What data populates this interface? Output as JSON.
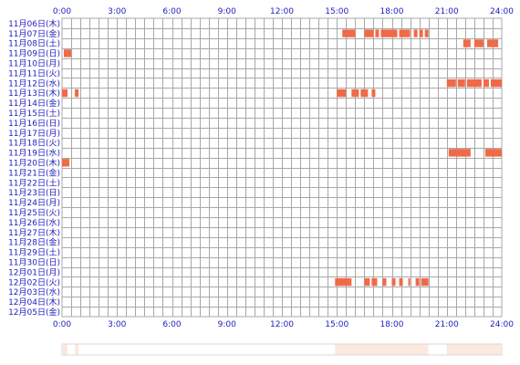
{
  "chart_data": {
    "type": "heatmap",
    "x_axis": {
      "unit": "hour",
      "range": [
        0,
        24
      ],
      "tick_labels": [
        "0:00",
        "3:00",
        "6:00",
        "9:00",
        "12:00",
        "15:00",
        "18:00",
        "21:00",
        "24:00"
      ]
    },
    "grid": true,
    "colors": {
      "active": "#f06a48",
      "grid": "#a8a8a8",
      "label": "#2020c0",
      "summary_light": "#fde8de"
    },
    "rows": [
      {
        "label": "11月06日(木)",
        "intervals": []
      },
      {
        "label": "11月07日(金)",
        "intervals": [
          [
            15.3,
            16.0
          ],
          [
            16.5,
            17.0
          ],
          [
            17.1,
            17.3
          ],
          [
            17.4,
            18.3
          ],
          [
            18.4,
            19.0
          ],
          [
            19.2,
            19.4
          ],
          [
            19.5,
            19.7
          ],
          [
            19.8,
            20.0
          ]
        ]
      },
      {
        "label": "11月08日(土)",
        "intervals": [
          [
            21.9,
            22.3
          ],
          [
            22.5,
            23.0
          ],
          [
            23.2,
            23.8
          ]
        ]
      },
      {
        "label": "11月09日(日)",
        "intervals": [
          [
            0.1,
            0.5
          ]
        ]
      },
      {
        "label": "11月10日(月)",
        "intervals": []
      },
      {
        "label": "11月11日(火)",
        "intervals": []
      },
      {
        "label": "11月12日(水)",
        "intervals": [
          [
            21.0,
            21.5
          ],
          [
            21.6,
            22.0
          ],
          [
            22.1,
            22.9
          ],
          [
            23.0,
            23.3
          ],
          [
            23.4,
            24.0
          ]
        ]
      },
      {
        "label": "11月13日(木)",
        "intervals": [
          [
            0.0,
            0.3
          ],
          [
            0.7,
            0.9
          ],
          [
            15.0,
            15.5
          ],
          [
            15.8,
            16.2
          ],
          [
            16.3,
            16.7
          ],
          [
            16.9,
            17.1
          ]
        ]
      },
      {
        "label": "11月14日(金)",
        "intervals": []
      },
      {
        "label": "11月15日(土)",
        "intervals": []
      },
      {
        "label": "11月16日(日)",
        "intervals": []
      },
      {
        "label": "11月17日(月)",
        "intervals": []
      },
      {
        "label": "11月18日(火)",
        "intervals": []
      },
      {
        "label": "11月19日(水)",
        "intervals": [
          [
            21.1,
            22.3
          ],
          [
            23.1,
            24.0
          ]
        ]
      },
      {
        "label": "11月20日(木)",
        "intervals": [
          [
            0.0,
            0.4
          ]
        ]
      },
      {
        "label": "11月21日(金)",
        "intervals": []
      },
      {
        "label": "11月22日(土)",
        "intervals": []
      },
      {
        "label": "11月23日(日)",
        "intervals": []
      },
      {
        "label": "11月24日(月)",
        "intervals": []
      },
      {
        "label": "11月25日(火)",
        "intervals": []
      },
      {
        "label": "11月26日(水)",
        "intervals": []
      },
      {
        "label": "11月27日(木)",
        "intervals": []
      },
      {
        "label": "11月28日(金)",
        "intervals": []
      },
      {
        "label": "11月29日(土)",
        "intervals": []
      },
      {
        "label": "11月30日(日)",
        "intervals": []
      },
      {
        "label": "12月01日(月)",
        "intervals": []
      },
      {
        "label": "12月02日(火)",
        "intervals": [
          [
            14.9,
            15.8
          ],
          [
            16.5,
            16.8
          ],
          [
            16.9,
            17.2
          ],
          [
            17.5,
            17.7
          ],
          [
            18.0,
            18.2
          ],
          [
            18.4,
            18.6
          ],
          [
            18.9,
            19.0
          ],
          [
            19.3,
            19.5
          ],
          [
            19.6,
            20.0
          ]
        ]
      },
      {
        "label": "12月03日(水)",
        "intervals": []
      },
      {
        "label": "12月04日(木)",
        "intervals": []
      },
      {
        "label": "12月05日(金)",
        "intervals": []
      }
    ],
    "summary_intervals": [
      [
        0.0,
        0.3
      ],
      [
        0.7,
        0.9
      ],
      [
        14.9,
        20.0
      ],
      [
        21.0,
        24.0
      ]
    ]
  }
}
